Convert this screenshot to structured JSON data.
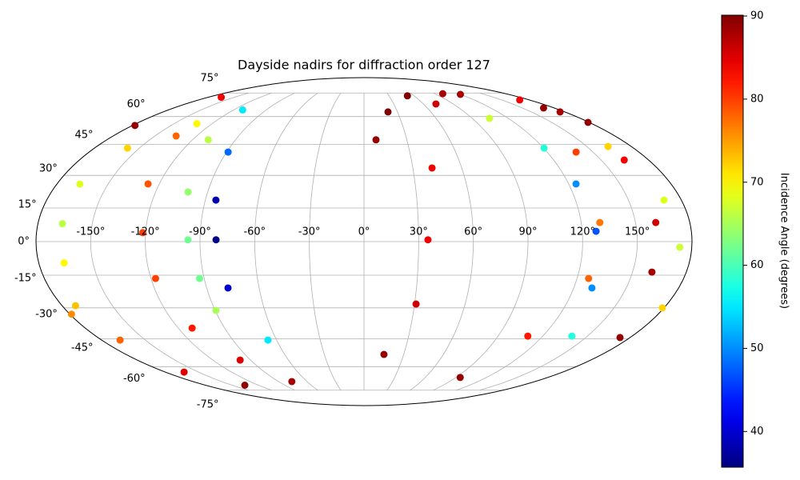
{
  "chart_data": {
    "type": "scatter",
    "projection": "mollweide",
    "cmap": "jet",
    "grid": true,
    "title": "Dayside nadirs for diffraction order 127",
    "colorbar_label": "Incidence Angle (degrees)",
    "xlim": [
      -180,
      180
    ],
    "ylim": [
      -90,
      90
    ],
    "clim": [
      35.7,
      90.1
    ],
    "xticks": [
      {
        "value": -150,
        "label": "-150°"
      },
      {
        "value": -120,
        "label": "-120°"
      },
      {
        "value": -90,
        "label": "-90°"
      },
      {
        "value": -60,
        "label": "-60°"
      },
      {
        "value": -30,
        "label": "-30°"
      },
      {
        "value": 0,
        "label": "0°"
      },
      {
        "value": 30,
        "label": "30°"
      },
      {
        "value": 60,
        "label": "60°"
      },
      {
        "value": 90,
        "label": "90°"
      },
      {
        "value": 120,
        "label": "120°"
      },
      {
        "value": 150,
        "label": "150°"
      }
    ],
    "yticks": [
      {
        "value": -75,
        "label": "-75°"
      },
      {
        "value": -60,
        "label": "-60°"
      },
      {
        "value": -45,
        "label": "-45°"
      },
      {
        "value": -30,
        "label": "-30°"
      },
      {
        "value": -15,
        "label": "-15°"
      },
      {
        "value": 0,
        "label": "0°"
      },
      {
        "value": 15,
        "label": "15°"
      },
      {
        "value": 30,
        "label": "30°"
      },
      {
        "value": 45,
        "label": "45°"
      },
      {
        "value": 60,
        "label": "60°"
      },
      {
        "value": 75,
        "label": "75°"
      }
    ],
    "cticks": [
      40,
      50,
      60,
      70,
      80,
      90
    ],
    "series": [
      {
        "x": [
          -132,
          -158,
          -166.5,
          -166.5,
          -166,
          -172
        ],
        "y": [
          56,
          43.2,
          25.9,
          8,
          -9.5,
          -29
        ],
        "values": [
          70,
          72,
          68,
          66,
          70,
          73
        ]
      },
      {
        "x": [
          -165,
          -134.8,
          -126.6,
          -121.6,
          -117.4,
          -111,
          -98.3,
          -76
        ],
        "y": [
          72,
          49.4,
          26,
          4,
          -16.5,
          -39.7,
          -56.3,
          -69.1
        ],
        "values": [
          84,
          78,
          79,
          80,
          80,
          82,
          85,
          88
        ]
      },
      {
        "x": [
          -109,
          -101.3,
          -96.6,
          -92.6,
          -89.5
        ],
        "y": [
          47.4,
          22.3,
          0.8,
          -16.5,
          -31.2
        ],
        "values": [
          66,
          64,
          62,
          62,
          65
        ]
      },
      {
        "x": [
          -111.7,
          -89,
          -84,
          -81.2,
          -77.8,
          -65.9
        ],
        "y": [
          63.9,
          41.2,
          18.6,
          0.8,
          -20.8,
          -45.7
        ],
        "values": [
          55,
          48,
          38,
          36,
          40,
          55
        ]
      },
      {
        "x": [
          8.4,
          21.5,
          52,
          120,
          170,
          179,
          -178
        ],
        "y": [
          47.4,
          62.7,
          73,
          74,
          65.1,
          56.7,
          55
        ],
        "values": [
          89,
          90,
          90,
          88,
          89,
          89,
          89
        ]
      },
      {
        "x": [
          15.1,
          30.9,
          35.1,
          41.8,
          72.6,
          100
        ],
        "y": [
          -53.2,
          -28.2,
          0.8,
          33.5,
          67.6,
          74.5
        ],
        "values": [
          89,
          86,
          84,
          84,
          86,
          88
        ]
      },
      {
        "x": [
          104.4,
          120.3,
          124.3,
          127.6,
          130.4,
          139.6
        ],
        "y": [
          59,
          43.2,
          26,
          4.6,
          -20.8,
          -43.7
        ],
        "values": [
          67,
          58,
          50,
          47,
          50,
          58
        ]
      },
      {
        "x": [
          169.6,
          138.9,
          130.3,
          126.5,
          110,
          94.3
        ],
        "y": [
          70.2,
          41.2,
          8.5,
          -16.5,
          -43.7,
          -66.5
        ],
        "values": [
          84,
          80,
          77,
          78,
          82,
          89
        ]
      },
      {
        "x": [
          175.7,
          164.6,
          161.2,
          160.8,
          173.2
        ],
        "y": [
          62.7,
          37.3,
          8.5,
          -13.6,
          -44.4
        ],
        "values": [
          88,
          84,
          86,
          88,
          89
        ]
      },
      {
        "x": [
          164.4,
          170.2,
          173.4,
          179,
          -179,
          -167.4,
          -163,
          -135.4
        ],
        "y": [
          44,
          18.6,
          -2.5,
          -30,
          -33,
          -45.7,
          -63.2,
          -71.5
        ],
        "values": [
          72,
          68,
          67,
          72,
          76,
          78,
          85,
          89
        ]
      }
    ]
  }
}
